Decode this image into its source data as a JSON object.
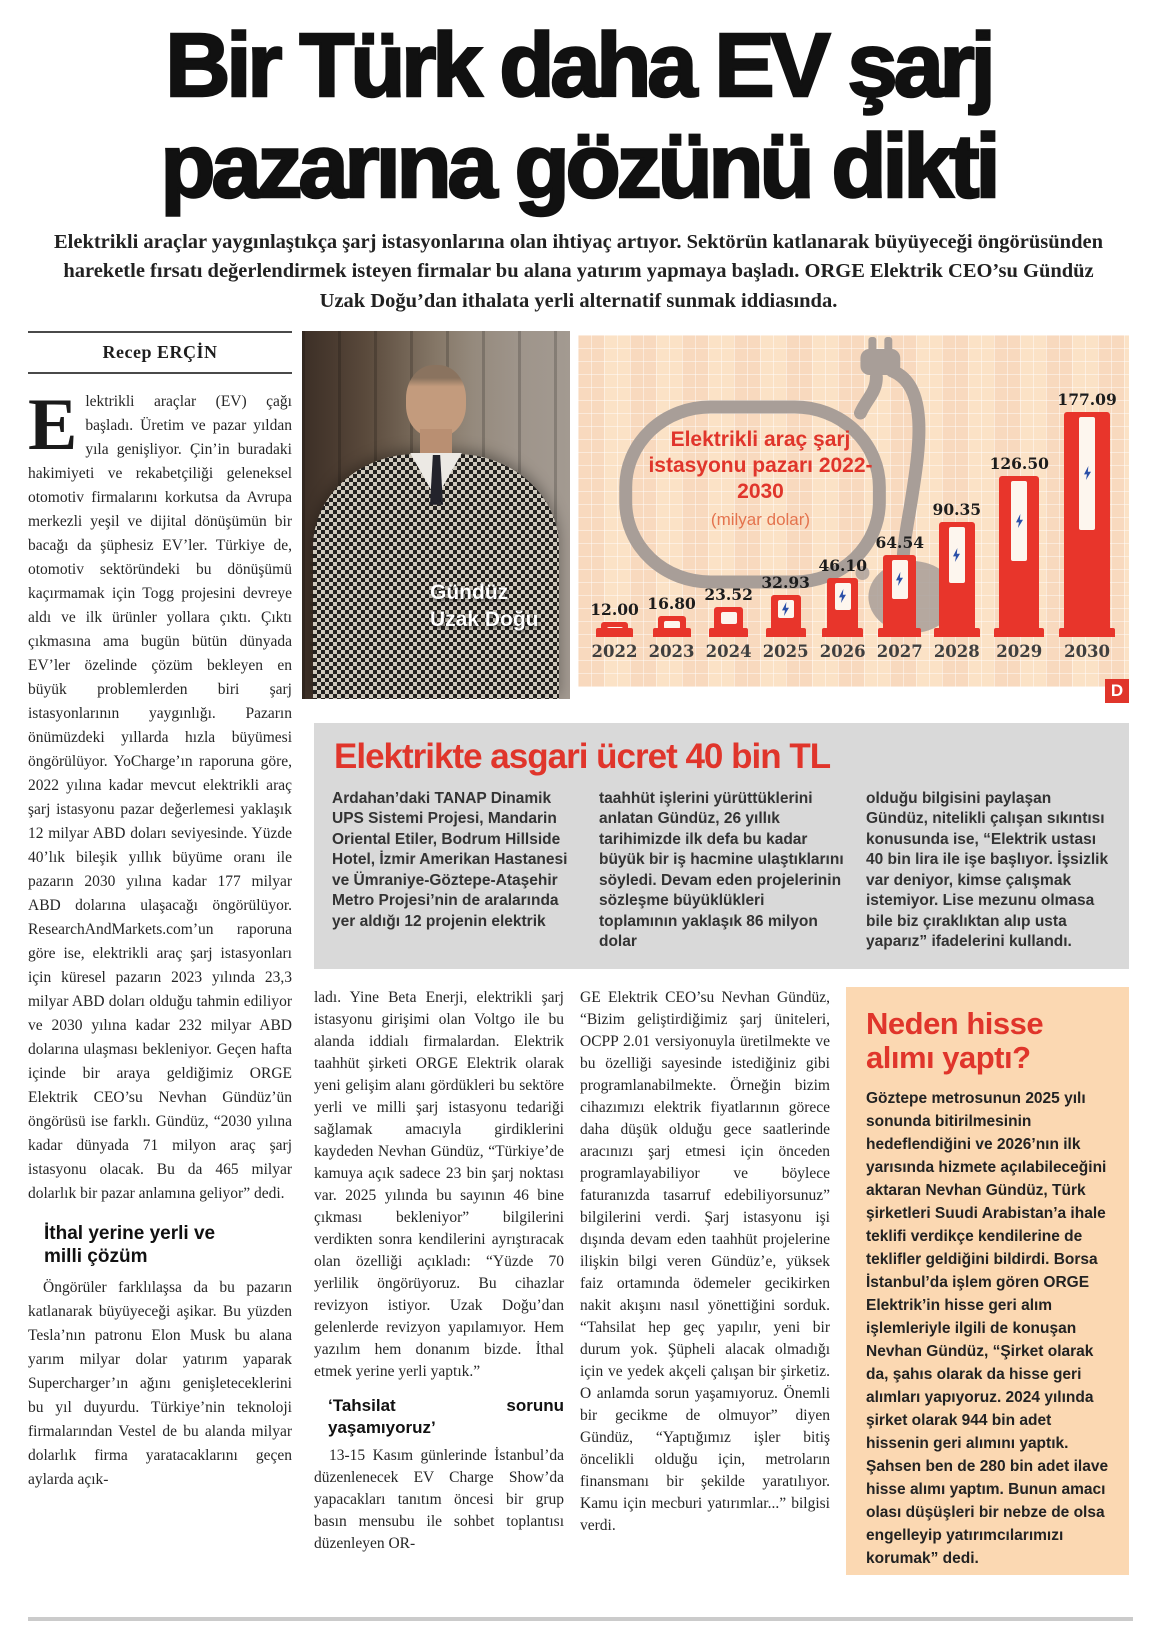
{
  "headline": {
    "line1": "Bir Türk daha EV şarj",
    "line2": "pazarına gözünü dikti"
  },
  "lede": "Elektrikli araçlar yaygınlaştıkça şarj istasyonlarına olan ihtiyaç artıyor. Sektörün katlanarak büyüyeceği öngörüsünden hareketle fırsatı değerlendirmek isteyen firmalar bu alana yatırım yapmaya başladı. ORGE Elektrik CEO’su Gündüz Uzak Doğu’dan ithalata yerli alternatif sunmak iddiasında.",
  "byline": "Recep ERÇİN",
  "left": {
    "dropcap": "E",
    "p1": "lektrikli araçlar (EV) çağı başladı. Üretim ve pazar yıldan yıla genişliyor. Çin’in buradaki hakimiyeti ve rekabetçiliği geleneksel otomotiv firmalarını korkutsa da Avrupa merkezli yeşil ve dijital dönüşümün bir bacağı da şüphesiz EV’ler. Türkiye de, otomotiv sektöründeki bu dönüşümü kaçırmamak için Togg projesini devreye aldı ve ilk ürünler yollara çıktı. Çıktı çıkmasına ama bugün bütün dünyada EV’ler özelinde çözüm bekleyen en büyük problemlerden biri şarj istasyonlarının yaygınlığı. Pazarın önümüzdeki yıllarda hızla büyümesi öngörülüyor. YoCharge’ın raporuna göre, 2022 yılına kadar mevcut elektrikli araç şarj istasyonu pazar değerlemesi yaklaşık 12 milyar ABD doları seviyesinde. Yüzde 40’lık bileşik yıllık büyüme oranı ile pazarın 2030 yılına kadar 177 milyar ABD dolarına ulaşacağı öngörülüyor. ResearchAndMarkets.com’un raporuna göre ise, elektrikli araç şarj istasyonları için küresel pazarın 2023 yılında 23,3 milyar ABD doları olduğu tahmin ediliyor ve 2030 yılına kadar 232 milyar ABD dolarına ulaşması bekleniyor. Geçen hafta içinde bir araya geldiğimiz ORGE Elektrik CEO’su Nevhan Gündüz’ün öngörüsü ise farklı. Gündüz, “2030 yılına kadar dünyada 71 milyon araç şarj istasyonu olacak. Bu da 465 milyar dolarlık bir pazar anlamına geliyor” dedi.",
    "subhead": "İthal yerine yerli ve milli çözüm",
    "p2": "Öngörüler farklılaşsa da bu pazarın katlanarak büyüyeceği aşikar. Bu yüzden Tesla’nın patronu Elon Musk bu alana yarım milyar dolar yatırım yaparak Supercharger’ın ağını genişleteceklerini bu yıl duyurdu. Türkiye’nin teknoloji firmalarından Vestel de bu alanda milyar dolarlık firma yaratacaklarını geçen aylarda açık-"
  },
  "photo": {
    "caption_line1": "Gündüz",
    "caption_line2": "Uzak Doğu"
  },
  "chart_data": {
    "type": "bar",
    "title": "Elektrikli araç şarj istasyonu pazarı 2022-2030",
    "subtitle": "(milyar dolar)",
    "unit": "milyar dolar",
    "categories": [
      "2022",
      "2023",
      "2024",
      "2025",
      "2026",
      "2027",
      "2028",
      "2029",
      "2030"
    ],
    "values": [
      12.0,
      16.8,
      23.52,
      32.93,
      46.1,
      64.54,
      90.35,
      126.5,
      177.09
    ],
    "value_labels": [
      "12.00",
      "16.80",
      "23.52",
      "32.93",
      "46.10",
      "64.54",
      "90.35",
      "126.50",
      "177.09"
    ],
    "ylim": [
      0,
      180
    ],
    "grid": true,
    "bar_color": "#e8352b",
    "bolt_color": "#2b50a8",
    "background": "#fbe2c6",
    "logo": "D"
  },
  "graybox": {
    "title": "Elektrikte asgari ücret 40 bin TL",
    "col1": "Ardahan’daki TANAP Dinamik UPS Sistemi Projesi, Mandarin Oriental Etiler, Bodrum Hillside Hotel, İzmir Amerikan Hastanesi ve Ümraniye-Göztepe-Ataşehir Metro Projesi’nin de aralarında yer aldığı 12 projenin elektrik",
    "col2": "taahhüt işlerini yürüttüklerini anlatan Gündüz, 26 yıllık tarihimizde ilk defa bu kadar büyük bir iş hacmine ulaştıklarını söyledi. Devam eden projelerinin sözleşme büyüklükleri toplamının yaklaşık 86 milyon dolar",
    "col3": "olduğu bilgisini paylaşan Gündüz, nitelikli çalışan sıkıntısı konusunda ise, “Elektrik ustası 40 bin lira ile işe başlıyor. İşsizlik var deniyor, kimse çalışmak istemiyor. Lise mezunu olmasa bile biz çıraklıktan alıp usta yaparız” ifadelerini kullandı."
  },
  "body": {
    "col1_p1": "ladı. Yine Beta Enerji, elektrikli şarj istasyonu girişimi olan Voltgo ile bu alanda iddialı firmalardan. Elektrik taahhüt şirketi ORGE Elektrik olarak yeni gelişim alanı gördükleri bu sektöre yerli ve milli şarj istasyonu tedariği sağlamak amacıyla girdiklerini kaydeden Nevhan Gündüz, “Türkiye’de kamuya açık sadece 23 bin şarj noktası var. 2025 yılında bu sayının 46 bine çıkması bekleniyor” bilgilerini verdikten sonra kendilerini ayrıştıracak olan özelliği açıkladı: “Yüzde 70 yerlilik öngörüyoruz. Bu cihazlar revizyon istiyor. Uzak Doğu’dan gelenlerde revizyon yapılamıyor. Hem yazılım hem donanım bizde. İthal etmek yerine yerli yaptık.”",
    "subhead": "‘Tahsilat sorunu yaşamıyoruz’",
    "col1_p2": "13-15 Kasım günlerinde İstanbul’da düzenlenecek EV Charge Show’da yapacakları tanıtım öncesi bir grup basın mensubu ile sohbet toplantısı düzenleyen OR-",
    "col2_p1": "GE Elektrik CEO’su Nevhan Gündüz, “Bizim geliştirdiğimiz şarj üniteleri, OCPP 2.01 versiyonuyla üretilmekte ve bu özelliği sayesinde istediğiniz gibi programlanabilmekte. Örneğin bizim cihazımızı elektrik fiyatlarının görece daha düşük olduğu gece saatlerinde aracınızı şarj etmesi için önceden programlayabiliyor ve böylece faturanızda tasarruf edebiliyorsunuz” bilgilerini verdi. Şarj istasyonu işi dışında devam eden taahhüt projelerine ilişkin bilgi veren Gündüz’e, yüksek faiz ortamında ödemeler gecikirken nakit akışını nasıl yönettiğini sorduk. “Tahsilat hep geç yapılır, yeni bir durum yok. Şüpheli alacak olmadığı için ve yedek akçeli çalışan bir şirketiz. O anlamda sorun yaşamıyoruz. Önemli bir gecikme de olmuyor” diyen Gündüz, “Yaptığımız işler bitiş öncelikli olduğu için, metroların finansmanı bir şekilde yaratılıyor. Kamu için mecburi yatırımlar...” bilgisi verdi."
  },
  "sidebar": {
    "title": "Neden hisse alımı yaptı?",
    "text": "Göztepe metrosunun 2025 yılı sonunda bitirilmesinin hedeflendiğini ve 2026’nın ilk yarısında hizmete açılabileceğini aktaran Nevhan Gündüz, Türk şirketleri Suudi Arabistan’a ihale teklifi verdikçe kendilerine de teklifler geldiğini bildirdi. Borsa İstanbul’da işlem gören ORGE Elektrik’in hisse geri alım işlemleriyle ilgili de konuşan Nevhan Gündüz, “Şirket olarak da, şahıs olarak da hisse geri alımları yapıyoruz. 2024 yılında şirket olarak 944 bin adet hissenin geri alımını yaptık. Şahsen ben de 280 bin adet ilave hisse alımı yaptım. Bunun amacı olası düşüşleri bir nebze de olsa engelleyip yatırımcılarımızı korumak” dedi."
  },
  "colors": {
    "accent_red": "#e0352b",
    "graybox_bg": "#d9d9d9",
    "sidebar_bg": "#fbd8b2",
    "chart_bg": "#fbe2c6",
    "cable_gray": "#a89e98"
  }
}
